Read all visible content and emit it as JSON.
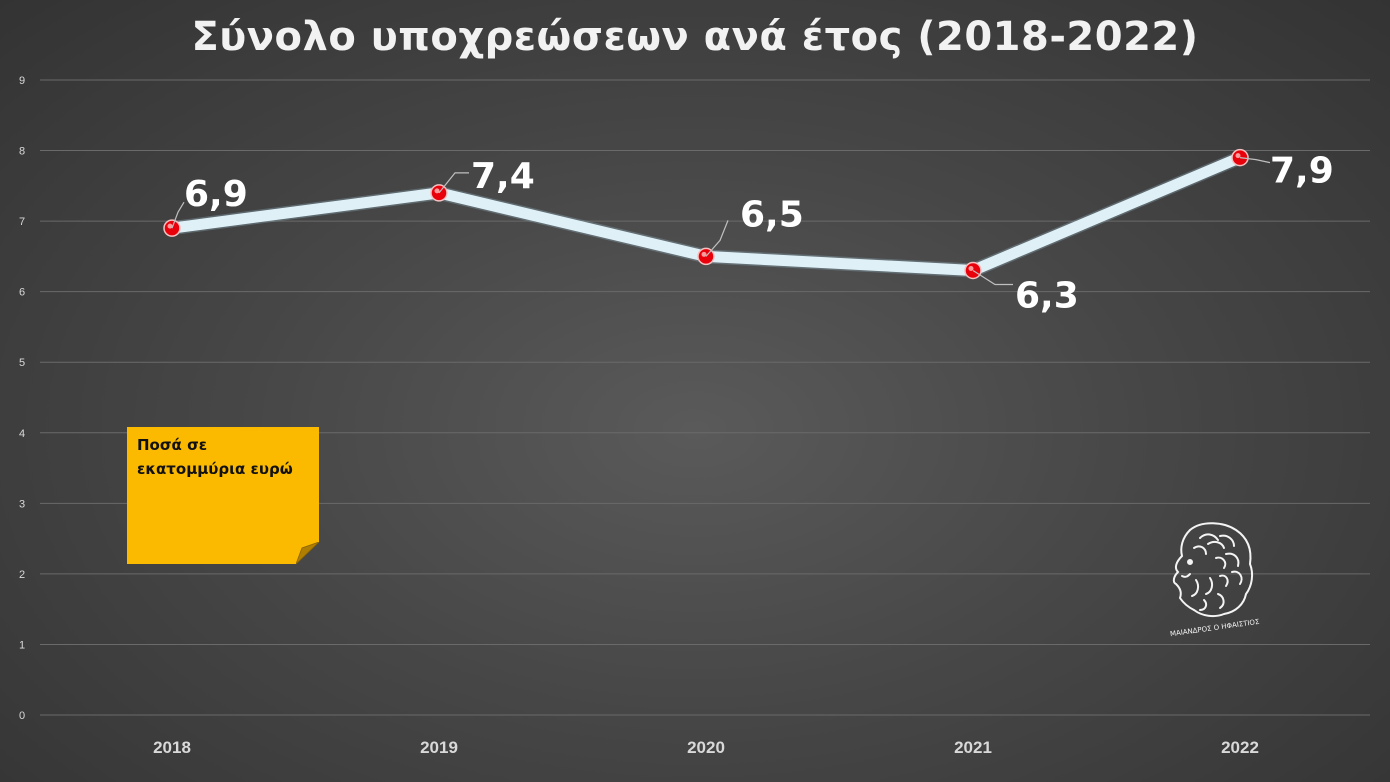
{
  "title": "Σύνολο υποχρεώσεων ανά έτος (2018-2022)",
  "note": "Ποσά σε\nεκατομμύρια ευρώ",
  "logo_text": "ΜΑΙΑΝΔΡΟΣ Ο ΗΦΑΙΣΤΙΟΣ",
  "colors": {
    "line": "#dff1f7",
    "marker": "#e8000b",
    "note": "#fbb900",
    "background": "#4a4a4a"
  },
  "chart_data": {
    "type": "line",
    "title": "Σύνολο υποχρεώσεων ανά έτος (2018-2022)",
    "xlabel": "",
    "ylabel": "",
    "categories": [
      "2018",
      "2019",
      "2020",
      "2021",
      "2022"
    ],
    "series": [
      {
        "values": [
          6.9,
          7.4,
          6.5,
          6.3,
          7.9
        ]
      }
    ],
    "data_labels": [
      "6,9",
      "7,4",
      "6,5",
      "6,3",
      "7,9"
    ],
    "ylim": [
      0,
      9
    ],
    "yticks": [
      "0",
      "1",
      "2",
      "3",
      "4",
      "5",
      "6",
      "7",
      "8",
      "9"
    ],
    "grid": true,
    "legend": "none"
  }
}
